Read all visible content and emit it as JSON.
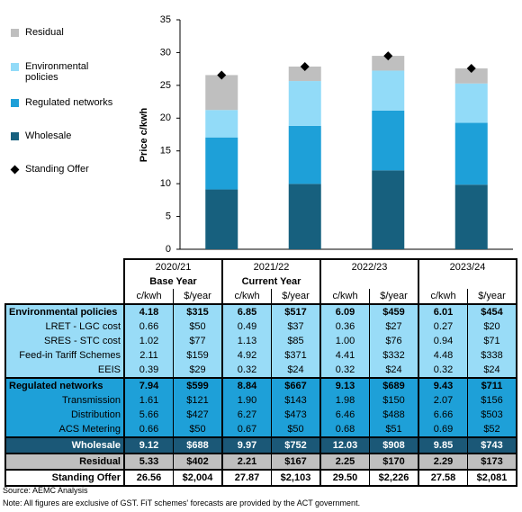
{
  "chart_data": {
    "type": "bar",
    "stacked": true,
    "categories": [
      "2020/21",
      "2021/22",
      "2022/23",
      "2023/24"
    ],
    "y_label": "Price c/kwh",
    "ylim": [
      0,
      35
    ],
    "yticks": [
      0,
      5,
      10,
      15,
      20,
      25,
      30,
      35
    ],
    "series": [
      {
        "name": "Wholesale",
        "color": "#17607e",
        "values": [
          9.12,
          9.97,
          12.03,
          9.85
        ]
      },
      {
        "name": "Regulated networks",
        "color": "#1ea0d8",
        "values": [
          7.94,
          8.84,
          9.13,
          9.43
        ]
      },
      {
        "name": "Environmental policies",
        "color": "#92dbf8",
        "values": [
          4.18,
          6.85,
          6.09,
          6.01
        ]
      },
      {
        "name": "Residual",
        "color": "#bfbfbf",
        "values": [
          5.33,
          2.21,
          2.25,
          2.29
        ]
      },
      {
        "name": "Standing Offer",
        "type": "scatter",
        "color": "#000000",
        "values": [
          26.56,
          27.87,
          29.5,
          27.58
        ]
      }
    ]
  },
  "table": {
    "subtitles": [
      "Base Year",
      "Current Year"
    ],
    "units": [
      "c/kwh",
      "$/year"
    ],
    "rows": [
      {
        "label": "Environmental policies",
        "values": [
          "4.18",
          "$315",
          "6.85",
          "$517",
          "6.09",
          "$459",
          "6.01",
          "$454"
        ]
      },
      {
        "label": "LRET - LGC cost",
        "values": [
          "0.66",
          "$50",
          "0.49",
          "$37",
          "0.36",
          "$27",
          "0.27",
          "$20"
        ]
      },
      {
        "label": "SRES - STC cost",
        "values": [
          "1.02",
          "$77",
          "1.13",
          "$85",
          "1.00",
          "$76",
          "0.94",
          "$71"
        ]
      },
      {
        "label": "Feed-in Tariff Schemes",
        "values": [
          "2.11",
          "$159",
          "4.92",
          "$371",
          "4.41",
          "$332",
          "4.48",
          "$338"
        ]
      },
      {
        "label": "EEIS",
        "values": [
          "0.39",
          "$29",
          "0.32",
          "$24",
          "0.32",
          "$24",
          "0.32",
          "$24"
        ]
      },
      {
        "label": "Regulated networks",
        "values": [
          "7.94",
          "$599",
          "8.84",
          "$667",
          "9.13",
          "$689",
          "9.43",
          "$711"
        ]
      },
      {
        "label": "Transmission",
        "values": [
          "1.61",
          "$121",
          "1.90",
          "$143",
          "1.98",
          "$150",
          "2.07",
          "$156"
        ]
      },
      {
        "label": "Distribution",
        "values": [
          "5.66",
          "$427",
          "6.27",
          "$473",
          "6.46",
          "$488",
          "6.66",
          "$503"
        ]
      },
      {
        "label": "ACS Metering",
        "values": [
          "0.66",
          "$50",
          "0.67",
          "$50",
          "0.68",
          "$51",
          "0.69",
          "$52"
        ]
      },
      {
        "label": "Wholesale",
        "values": [
          "9.12",
          "$688",
          "9.97",
          "$752",
          "12.03",
          "$908",
          "9.85",
          "$743"
        ]
      },
      {
        "label": "Residual",
        "values": [
          "5.33",
          "$402",
          "2.21",
          "$167",
          "2.25",
          "$170",
          "2.29",
          "$173"
        ]
      },
      {
        "label": "Standing Offer",
        "values": [
          "26.56",
          "$2,004",
          "27.87",
          "$2,103",
          "29.50",
          "$2,226",
          "27.58",
          "$2,081"
        ]
      }
    ],
    "source": "Source: AEMC Analysis",
    "note": "Note: All figures are exclusive of GST. FiT schemes' forecasts are provided by the ACT government."
  }
}
